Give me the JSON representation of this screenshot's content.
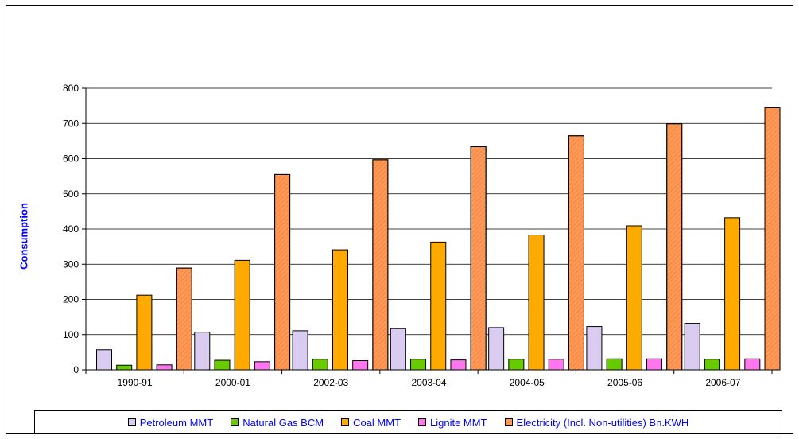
{
  "chart_data": {
    "type": "bar",
    "title": "",
    "xlabel": "",
    "ylabel": "Consumption",
    "ylim": [
      0,
      800
    ],
    "yticks": [
      0,
      100,
      200,
      300,
      400,
      500,
      600,
      700,
      800
    ],
    "grid": true,
    "legend_position": "bottom",
    "categories": [
      "1990-91",
      "2000-01",
      "2002-03",
      "2003-04",
      "2004-05",
      "2005-06",
      "2006-07"
    ],
    "series": [
      {
        "name": "Petroleum MMT",
        "color": "#d9ccf0",
        "values": [
          57,
          107,
          111,
          117,
          120,
          123,
          132
        ]
      },
      {
        "name": "Natural Gas BCM",
        "color": "#66cc00",
        "values": [
          13,
          27,
          30,
          30,
          30,
          31,
          30
        ]
      },
      {
        "name": "Coal MMT",
        "color": "#ffaa00",
        "values": [
          212,
          311,
          341,
          363,
          383,
          409,
          432
        ]
      },
      {
        "name": "Lignite MMT",
        "color": "#ff77ee",
        "values": [
          14,
          23,
          26,
          28,
          30,
          31,
          31
        ]
      },
      {
        "name": "Electricity (Incl. Non-utilities) Bn.KWH",
        "color": "#ff9955",
        "values": [
          289,
          555,
          597,
          634,
          665,
          699,
          745
        ]
      }
    ]
  }
}
